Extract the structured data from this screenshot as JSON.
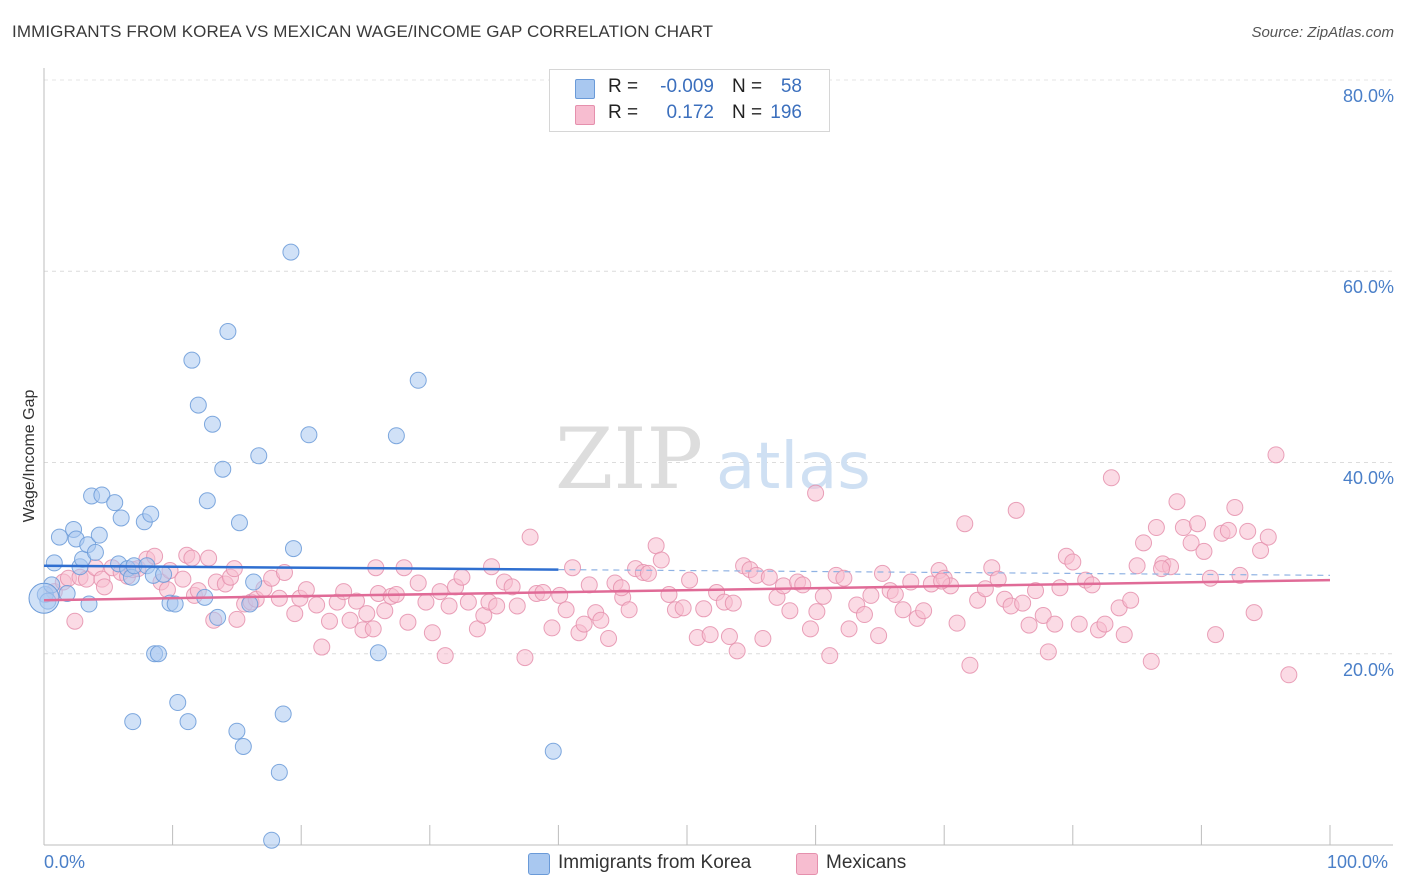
{
  "header": {
    "title": "IMMIGRANTS FROM KOREA VS MEXICAN WAGE/INCOME GAP CORRELATION CHART",
    "source": "Source: ZipAtlas.com"
  },
  "legend": {
    "series": [
      {
        "r_label": "R =",
        "r_value": "-0.009",
        "n_label": "N =",
        "n_value": "58",
        "color": "#a9c8f0",
        "border": "#6a9ad8"
      },
      {
        "r_label": "R =",
        "r_value": "0.172",
        "n_label": "N =",
        "n_value": "196",
        "color": "#f7bdd0",
        "border": "#e590ad"
      }
    ]
  },
  "bottom_legend": {
    "korea_label": "Immigrants from Korea",
    "mexicans_label": "Mexicans"
  },
  "watermark": {
    "zip": "ZIP",
    "atlas": "atlas"
  },
  "chart_data": {
    "type": "scatter",
    "title": "IMMIGRANTS FROM KOREA VS MEXICAN WAGE/INCOME GAP CORRELATION CHART",
    "ylabel": "Wage/Income Gap",
    "xlabel": "",
    "xlim": [
      0,
      100
    ],
    "ylim": [
      0,
      80
    ],
    "x_ticks": [
      "0.0%",
      "100.0%"
    ],
    "y_ticks": [
      {
        "value": 20,
        "label": "20.0%"
      },
      {
        "value": 40,
        "label": "40.0%"
      },
      {
        "value": 60,
        "label": "60.0%"
      },
      {
        "value": 80,
        "label": "80.0%"
      }
    ],
    "grid": true,
    "legend_position": "top-center",
    "series": [
      {
        "name": "Immigrants from Korea",
        "color": "#6a9ad8",
        "fill": "#a9c8f0",
        "trend": {
          "x": [
            0,
            40
          ],
          "y": [
            29.2,
            28.8
          ],
          "dashed_to": 100
        },
        "points": [
          [
            0.1,
            26.2
          ],
          [
            0.3,
            25.5
          ],
          [
            0.6,
            27.2
          ],
          [
            0.8,
            29.5
          ],
          [
            1.2,
            32.2
          ],
          [
            1.8,
            26.3
          ],
          [
            2.3,
            33.0
          ],
          [
            2.5,
            32.0
          ],
          [
            2.8,
            29.1
          ],
          [
            3.0,
            29.9
          ],
          [
            3.4,
            31.4
          ],
          [
            3.5,
            25.2
          ],
          [
            3.7,
            36.5
          ],
          [
            4.0,
            30.6
          ],
          [
            4.3,
            32.4
          ],
          [
            4.5,
            36.6
          ],
          [
            5.5,
            35.8
          ],
          [
            6.0,
            34.2
          ],
          [
            5.8,
            29.4
          ],
          [
            6.5,
            28.9
          ],
          [
            6.8,
            28.0
          ],
          [
            7.0,
            29.2
          ],
          [
            6.9,
            12.9
          ],
          [
            7.8,
            33.8
          ],
          [
            8.0,
            29.2
          ],
          [
            8.3,
            34.6
          ],
          [
            8.5,
            28.2
          ],
          [
            8.6,
            20.0
          ],
          [
            8.9,
            20.0
          ],
          [
            9.3,
            28.3
          ],
          [
            9.8,
            25.3
          ],
          [
            10.2,
            25.2
          ],
          [
            10.4,
            14.9
          ],
          [
            11.2,
            12.9
          ],
          [
            11.5,
            50.7
          ],
          [
            12.0,
            46.0
          ],
          [
            12.5,
            25.9
          ],
          [
            12.7,
            36.0
          ],
          [
            13.1,
            44.0
          ],
          [
            13.5,
            23.8
          ],
          [
            13.9,
            39.3
          ],
          [
            14.3,
            53.7
          ],
          [
            15.2,
            33.7
          ],
          [
            15.0,
            11.9
          ],
          [
            15.5,
            10.3
          ],
          [
            16.3,
            27.5
          ],
          [
            16.7,
            40.7
          ],
          [
            16.0,
            25.2
          ],
          [
            17.7,
            0.5
          ],
          [
            18.3,
            7.6
          ],
          [
            18.6,
            13.7
          ],
          [
            19.2,
            62.0
          ],
          [
            19.4,
            31.0
          ],
          [
            20.6,
            42.9
          ],
          [
            27.4,
            42.8
          ],
          [
            29.1,
            48.6
          ],
          [
            26.0,
            20.1
          ],
          [
            39.6,
            9.8
          ]
        ],
        "large_point": [
          0.0,
          25.8
        ]
      },
      {
        "name": "Mexicans",
        "color": "#e590ad",
        "fill": "#f7bdd0",
        "trend": {
          "x": [
            0,
            100
          ],
          "y": [
            25.6,
            27.7
          ]
        },
        "points": [
          [
            0.8,
            26.5
          ],
          [
            1.5,
            27.5
          ],
          [
            1.9,
            27.9
          ],
          [
            2.4,
            23.4
          ],
          [
            2.8,
            28.0
          ],
          [
            3.3,
            27.8
          ],
          [
            4.0,
            29.0
          ],
          [
            4.5,
            27.8
          ],
          [
            4.7,
            27.0
          ],
          [
            5.3,
            29.0
          ],
          [
            6.0,
            28.5
          ],
          [
            6.5,
            28.1
          ],
          [
            6.9,
            28.8
          ],
          [
            7.3,
            28.9
          ],
          [
            8.0,
            29.9
          ],
          [
            8.6,
            30.2
          ],
          [
            9.1,
            27.5
          ],
          [
            9.6,
            26.7
          ],
          [
            9.8,
            28.7
          ],
          [
            10.8,
            27.8
          ],
          [
            11.1,
            30.3
          ],
          [
            11.7,
            26.1
          ],
          [
            12.0,
            26.6
          ],
          [
            12.8,
            30.0
          ],
          [
            13.2,
            23.5
          ],
          [
            13.4,
            27.5
          ],
          [
            14.1,
            27.3
          ],
          [
            14.5,
            28.0
          ],
          [
            14.8,
            28.9
          ],
          [
            15.0,
            23.6
          ],
          [
            15.6,
            25.2
          ],
          [
            16.1,
            25.4
          ],
          [
            16.5,
            25.7
          ],
          [
            17.1,
            26.8
          ],
          [
            17.7,
            27.9
          ],
          [
            18.3,
            25.8
          ],
          [
            18.7,
            28.5
          ],
          [
            19.5,
            24.2
          ],
          [
            19.9,
            25.8
          ],
          [
            20.4,
            26.7
          ],
          [
            21.2,
            25.1
          ],
          [
            21.6,
            20.7
          ],
          [
            22.2,
            23.4
          ],
          [
            22.8,
            25.4
          ],
          [
            23.3,
            26.5
          ],
          [
            23.8,
            23.5
          ],
          [
            24.3,
            25.5
          ],
          [
            24.8,
            22.5
          ],
          [
            25.1,
            24.2
          ],
          [
            25.8,
            29.0
          ],
          [
            26.0,
            26.3
          ],
          [
            26.5,
            24.5
          ],
          [
            27.0,
            26.0
          ],
          [
            27.4,
            26.2
          ],
          [
            28.0,
            29.0
          ],
          [
            28.3,
            23.3
          ],
          [
            29.1,
            27.4
          ],
          [
            29.7,
            25.4
          ],
          [
            30.2,
            22.2
          ],
          [
            30.8,
            26.5
          ],
          [
            31.2,
            19.8
          ],
          [
            31.5,
            25.0
          ],
          [
            32.0,
            27.0
          ],
          [
            32.5,
            28.0
          ],
          [
            33.0,
            25.4
          ],
          [
            33.7,
            22.6
          ],
          [
            34.2,
            24.0
          ],
          [
            34.6,
            25.4
          ],
          [
            35.2,
            25.0
          ],
          [
            35.8,
            27.5
          ],
          [
            36.4,
            27.0
          ],
          [
            36.8,
            25.0
          ],
          [
            37.4,
            19.6
          ],
          [
            37.8,
            32.2
          ],
          [
            38.3,
            26.3
          ],
          [
            38.8,
            26.4
          ],
          [
            39.5,
            22.7
          ],
          [
            40.1,
            26.1
          ],
          [
            40.6,
            24.6
          ],
          [
            41.1,
            29.0
          ],
          [
            41.6,
            22.2
          ],
          [
            42.0,
            23.1
          ],
          [
            42.4,
            27.2
          ],
          [
            42.9,
            24.3
          ],
          [
            43.3,
            23.5
          ],
          [
            43.9,
            21.6
          ],
          [
            44.4,
            27.4
          ],
          [
            45.0,
            25.9
          ],
          [
            45.5,
            24.6
          ],
          [
            46.0,
            28.9
          ],
          [
            46.6,
            28.5
          ],
          [
            47.0,
            28.4
          ],
          [
            47.6,
            31.3
          ],
          [
            48.0,
            29.8
          ],
          [
            48.6,
            26.2
          ],
          [
            49.1,
            24.6
          ],
          [
            49.7,
            24.8
          ],
          [
            50.2,
            27.7
          ],
          [
            50.8,
            21.7
          ],
          [
            51.3,
            24.7
          ],
          [
            51.8,
            22.0
          ],
          [
            52.3,
            26.4
          ],
          [
            52.9,
            25.4
          ],
          [
            53.3,
            21.8
          ],
          [
            53.9,
            20.3
          ],
          [
            54.4,
            29.2
          ],
          [
            54.9,
            28.8
          ],
          [
            55.4,
            28.2
          ],
          [
            55.9,
            21.6
          ],
          [
            56.4,
            28.0
          ],
          [
            57.0,
            25.9
          ],
          [
            57.5,
            27.1
          ],
          [
            58.0,
            24.5
          ],
          [
            58.6,
            27.5
          ],
          [
            59.0,
            27.2
          ],
          [
            59.6,
            22.6
          ],
          [
            60.1,
            24.4
          ],
          [
            60.6,
            26.0
          ],
          [
            61.1,
            19.8
          ],
          [
            61.6,
            28.2
          ],
          [
            62.2,
            27.9
          ],
          [
            62.6,
            22.6
          ],
          [
            63.2,
            25.1
          ],
          [
            63.8,
            24.1
          ],
          [
            64.3,
            26.1
          ],
          [
            64.9,
            21.9
          ],
          [
            65.2,
            28.4
          ],
          [
            65.8,
            26.6
          ],
          [
            66.2,
            26.2
          ],
          [
            66.8,
            24.6
          ],
          [
            67.4,
            27.5
          ],
          [
            67.9,
            23.7
          ],
          [
            68.4,
            24.5
          ],
          [
            69.0,
            27.3
          ],
          [
            69.6,
            28.7
          ],
          [
            70.0,
            27.9
          ],
          [
            70.5,
            27.1
          ],
          [
            71.0,
            23.2
          ],
          [
            71.6,
            33.6
          ],
          [
            72.0,
            18.8
          ],
          [
            72.6,
            25.6
          ],
          [
            73.2,
            26.8
          ],
          [
            73.7,
            29.0
          ],
          [
            74.2,
            27.8
          ],
          [
            74.7,
            25.7
          ],
          [
            75.2,
            25.0
          ],
          [
            75.6,
            35.0
          ],
          [
            76.1,
            25.3
          ],
          [
            76.6,
            23.0
          ],
          [
            77.1,
            26.6
          ],
          [
            77.7,
            24.0
          ],
          [
            78.1,
            20.2
          ],
          [
            78.6,
            23.1
          ],
          [
            79.0,
            26.9
          ],
          [
            79.5,
            30.2
          ],
          [
            80.0,
            29.6
          ],
          [
            80.5,
            23.1
          ],
          [
            81.0,
            27.7
          ],
          [
            81.5,
            27.2
          ],
          [
            82.0,
            22.5
          ],
          [
            82.5,
            23.1
          ],
          [
            83.0,
            38.4
          ],
          [
            83.6,
            24.8
          ],
          [
            84.0,
            22.0
          ],
          [
            84.5,
            25.6
          ],
          [
            85.0,
            29.2
          ],
          [
            85.5,
            31.6
          ],
          [
            86.1,
            19.2
          ],
          [
            86.5,
            33.2
          ],
          [
            87.0,
            29.4
          ],
          [
            87.6,
            29.1
          ],
          [
            88.1,
            35.9
          ],
          [
            88.6,
            33.2
          ],
          [
            89.2,
            31.6
          ],
          [
            89.7,
            33.6
          ],
          [
            90.2,
            30.7
          ],
          [
            90.7,
            27.9
          ],
          [
            91.1,
            22.0
          ],
          [
            91.6,
            32.6
          ],
          [
            92.1,
            32.9
          ],
          [
            92.6,
            35.3
          ],
          [
            93.0,
            28.2
          ],
          [
            93.6,
            32.8
          ],
          [
            94.1,
            24.3
          ],
          [
            94.6,
            30.8
          ],
          [
            95.2,
            32.2
          ],
          [
            95.8,
            40.8
          ],
          [
            96.8,
            17.8
          ],
          [
            60.0,
            36.8
          ],
          [
            11.5,
            30.0
          ],
          [
            25.6,
            22.6
          ],
          [
            34.8,
            29.1
          ],
          [
            44.9,
            26.9
          ],
          [
            53.6,
            25.3
          ],
          [
            69.8,
            27.6
          ],
          [
            86.9,
            28.9
          ]
        ]
      }
    ]
  }
}
